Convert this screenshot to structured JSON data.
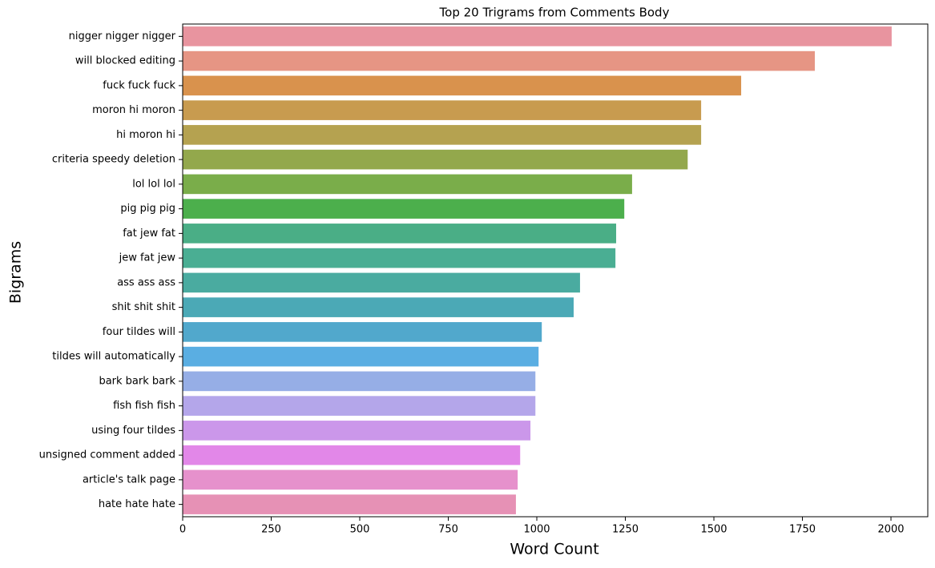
{
  "chart_data": {
    "type": "barh",
    "title": "Top 20 Trigrams from Comments Body",
    "xlabel": "Word Count",
    "ylabel": "Bigrams",
    "categories": [
      "nigger nigger nigger",
      "will blocked editing",
      "fuck fuck fuck",
      "moron hi moron",
      "hi moron hi",
      "criteria speedy deletion",
      "lol lol lol",
      "pig pig pig",
      "fat jew fat",
      "jew fat jew",
      "ass ass ass",
      "shit shit shit",
      "four tildes will",
      "tildes will automatically",
      "bark bark bark",
      "fish fish fish",
      "using four tildes",
      "unsigned comment added",
      "article's talk page",
      "hate hate hate"
    ],
    "values": [
      2002,
      1785,
      1577,
      1464,
      1464,
      1426,
      1269,
      1247,
      1224,
      1222,
      1122,
      1104,
      1014,
      1005,
      996,
      996,
      982,
      953,
      946,
      941
    ],
    "colors": [
      "#e8949f",
      "#e69584",
      "#d9924d",
      "#c89b4f",
      "#b5a250",
      "#93a84c",
      "#7aad4a",
      "#4caf4c",
      "#4aae86",
      "#4aae93",
      "#4aaba0",
      "#4ba9b6",
      "#51a8cc",
      "#5aaee2",
      "#96aee6",
      "#b4a6ea",
      "#cb97ea",
      "#e287e8",
      "#e691cc",
      "#e691b5"
    ],
    "xlim": [
      0,
      2104
    ],
    "xticks": [
      0,
      250,
      500,
      750,
      1000,
      1250,
      1500,
      1750,
      2000
    ]
  }
}
